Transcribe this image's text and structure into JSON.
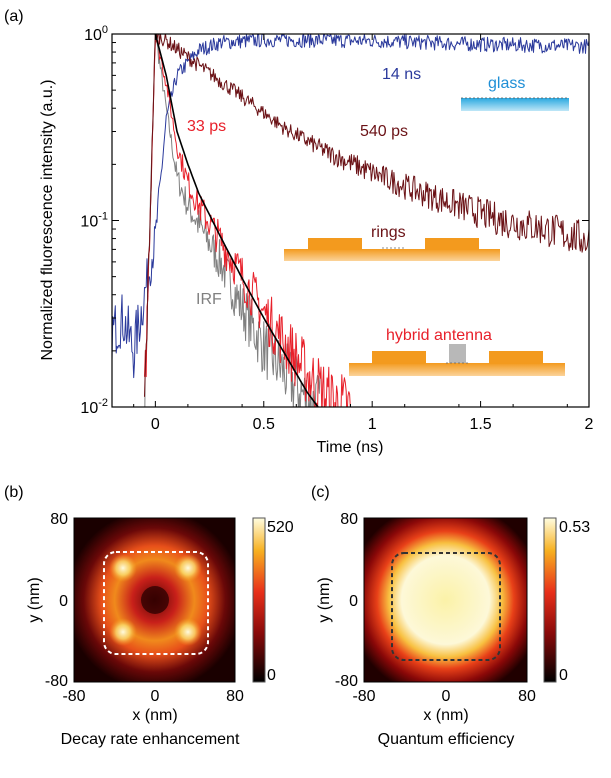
{
  "panels": {
    "a": {
      "label": "(a)"
    },
    "b": {
      "label": "(b)"
    },
    "c": {
      "label": "(c)"
    }
  },
  "chart_data": [
    {
      "panel": "a",
      "type": "line",
      "xlabel": "Time (ns)",
      "ylabel": "Normalized fluorescence intensity (a.u.)",
      "xlim": [
        -0.2,
        2.0
      ],
      "ylim": [
        0.01,
        1.0
      ],
      "yscale": "log",
      "xticks": [
        "0",
        "0.5",
        "1",
        "1.5",
        "2"
      ],
      "yticks": [
        {
          "base": "10",
          "exp": "0"
        },
        {
          "base": "10",
          "exp": "-1"
        },
        {
          "base": "10",
          "exp": "-2"
        }
      ],
      "grid": false,
      "series": [
        {
          "name": "glass",
          "lifetime_label": "14 ns",
          "color": "#2b3a9c",
          "x": [
            -0.2,
            -0.15,
            -0.1,
            -0.05,
            0.0,
            0.05,
            0.1,
            0.2,
            0.3,
            0.5,
            1.0,
            1.5,
            2.0
          ],
          "y": [
            0.025,
            0.03,
            0.02,
            0.04,
            0.08,
            0.35,
            0.6,
            0.82,
            0.9,
            0.93,
            0.92,
            0.88,
            0.86
          ]
        },
        {
          "name": "rings",
          "lifetime_label": "540 ps",
          "color": "#6b1216",
          "x": [
            -0.05,
            0.0,
            0.05,
            0.1,
            0.2,
            0.4,
            0.6,
            0.8,
            1.0,
            1.2,
            1.4,
            1.6,
            1.8,
            2.0
          ],
          "y": [
            0.01,
            1.0,
            0.92,
            0.83,
            0.68,
            0.46,
            0.31,
            0.23,
            0.18,
            0.145,
            0.12,
            0.1,
            0.09,
            0.078
          ]
        },
        {
          "name": "hybrid antenna",
          "lifetime_label": "33 ps",
          "color": "#e8202a",
          "x": [
            -0.05,
            0.0,
            0.05,
            0.1,
            0.15,
            0.2,
            0.3,
            0.4,
            0.5,
            0.6,
            0.7,
            0.8,
            0.9
          ],
          "y": [
            0.01,
            1.0,
            0.55,
            0.25,
            0.16,
            0.12,
            0.078,
            0.05,
            0.032,
            0.022,
            0.015,
            0.011,
            0.0095
          ]
        },
        {
          "name": "IRF",
          "color": "#808080",
          "x": [
            -0.05,
            0.0,
            0.05,
            0.1,
            0.15,
            0.2,
            0.3,
            0.4,
            0.5,
            0.6,
            0.7,
            0.76
          ],
          "y": [
            0.01,
            1.0,
            0.4,
            0.17,
            0.12,
            0.095,
            0.06,
            0.034,
            0.021,
            0.015,
            0.011,
            0.01
          ]
        },
        {
          "name": "fit",
          "color": "#000000",
          "x": [
            0.0,
            0.05,
            0.1,
            0.15,
            0.2,
            0.3,
            0.4,
            0.5,
            0.6,
            0.7,
            0.75
          ],
          "y": [
            1.0,
            0.6,
            0.3,
            0.2,
            0.14,
            0.082,
            0.049,
            0.03,
            0.019,
            0.012,
            0.01
          ]
        }
      ],
      "annotations": [
        "14 ns",
        "glass",
        "33 ps",
        "540 ps",
        "rings",
        "IRF",
        "hybrid antenna"
      ]
    },
    {
      "panel": "b",
      "type": "heatmap",
      "xlabel": "x (nm)",
      "ylabel": "y (nm)",
      "caption": "Decay rate enhancement",
      "xlim": [
        -80,
        80
      ],
      "ylim": [
        -80,
        80
      ],
      "xticks": [
        "-80",
        "0",
        "80"
      ],
      "yticks": [
        "80",
        "0",
        "-80"
      ],
      "colorbar": {
        "min": "0",
        "max": "520"
      }
    },
    {
      "panel": "c",
      "type": "heatmap",
      "xlabel": "x (nm)",
      "ylabel": "y (nm)",
      "caption": "Quantum efficiency",
      "xlim": [
        -80,
        80
      ],
      "ylim": [
        -80,
        80
      ],
      "xticks": [
        "-80",
        "0",
        "80"
      ],
      "yticks": [
        "80",
        "0",
        "-80"
      ],
      "colorbar": {
        "min": "0",
        "max": "0.53"
      }
    }
  ]
}
